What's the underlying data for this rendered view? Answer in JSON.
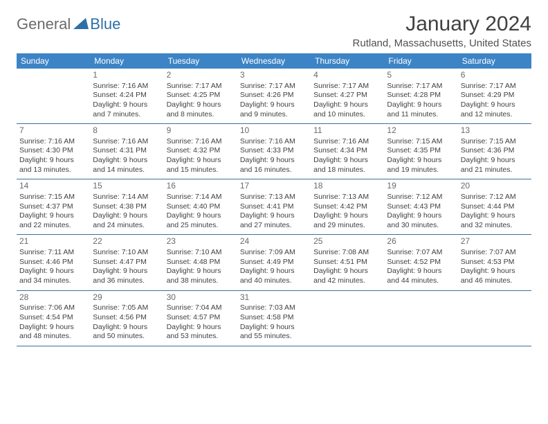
{
  "brand": {
    "part1": "General",
    "part2": "Blue"
  },
  "title": "January 2024",
  "location": "Rutland, Massachusetts, United States",
  "colors": {
    "header_bg": "#3d84c6",
    "header_text": "#ffffff",
    "row_border": "#3d6f9c",
    "title_color": "#404040",
    "logo_gray": "#6b6b6b",
    "logo_blue": "#2f6fa8",
    "cell_text": "#404040",
    "date_color": "#6a6a6a",
    "background": "#ffffff"
  },
  "day_names": [
    "Sunday",
    "Monday",
    "Tuesday",
    "Wednesday",
    "Thursday",
    "Friday",
    "Saturday"
  ],
  "weeks": [
    [
      null,
      {
        "d": "1",
        "sr": "Sunrise: 7:16 AM",
        "ss": "Sunset: 4:24 PM",
        "dl1": "Daylight: 9 hours",
        "dl2": "and 7 minutes."
      },
      {
        "d": "2",
        "sr": "Sunrise: 7:17 AM",
        "ss": "Sunset: 4:25 PM",
        "dl1": "Daylight: 9 hours",
        "dl2": "and 8 minutes."
      },
      {
        "d": "3",
        "sr": "Sunrise: 7:17 AM",
        "ss": "Sunset: 4:26 PM",
        "dl1": "Daylight: 9 hours",
        "dl2": "and 9 minutes."
      },
      {
        "d": "4",
        "sr": "Sunrise: 7:17 AM",
        "ss": "Sunset: 4:27 PM",
        "dl1": "Daylight: 9 hours",
        "dl2": "and 10 minutes."
      },
      {
        "d": "5",
        "sr": "Sunrise: 7:17 AM",
        "ss": "Sunset: 4:28 PM",
        "dl1": "Daylight: 9 hours",
        "dl2": "and 11 minutes."
      },
      {
        "d": "6",
        "sr": "Sunrise: 7:17 AM",
        "ss": "Sunset: 4:29 PM",
        "dl1": "Daylight: 9 hours",
        "dl2": "and 12 minutes."
      }
    ],
    [
      {
        "d": "7",
        "sr": "Sunrise: 7:16 AM",
        "ss": "Sunset: 4:30 PM",
        "dl1": "Daylight: 9 hours",
        "dl2": "and 13 minutes."
      },
      {
        "d": "8",
        "sr": "Sunrise: 7:16 AM",
        "ss": "Sunset: 4:31 PM",
        "dl1": "Daylight: 9 hours",
        "dl2": "and 14 minutes."
      },
      {
        "d": "9",
        "sr": "Sunrise: 7:16 AM",
        "ss": "Sunset: 4:32 PM",
        "dl1": "Daylight: 9 hours",
        "dl2": "and 15 minutes."
      },
      {
        "d": "10",
        "sr": "Sunrise: 7:16 AM",
        "ss": "Sunset: 4:33 PM",
        "dl1": "Daylight: 9 hours",
        "dl2": "and 16 minutes."
      },
      {
        "d": "11",
        "sr": "Sunrise: 7:16 AM",
        "ss": "Sunset: 4:34 PM",
        "dl1": "Daylight: 9 hours",
        "dl2": "and 18 minutes."
      },
      {
        "d": "12",
        "sr": "Sunrise: 7:15 AM",
        "ss": "Sunset: 4:35 PM",
        "dl1": "Daylight: 9 hours",
        "dl2": "and 19 minutes."
      },
      {
        "d": "13",
        "sr": "Sunrise: 7:15 AM",
        "ss": "Sunset: 4:36 PM",
        "dl1": "Daylight: 9 hours",
        "dl2": "and 21 minutes."
      }
    ],
    [
      {
        "d": "14",
        "sr": "Sunrise: 7:15 AM",
        "ss": "Sunset: 4:37 PM",
        "dl1": "Daylight: 9 hours",
        "dl2": "and 22 minutes."
      },
      {
        "d": "15",
        "sr": "Sunrise: 7:14 AM",
        "ss": "Sunset: 4:38 PM",
        "dl1": "Daylight: 9 hours",
        "dl2": "and 24 minutes."
      },
      {
        "d": "16",
        "sr": "Sunrise: 7:14 AM",
        "ss": "Sunset: 4:40 PM",
        "dl1": "Daylight: 9 hours",
        "dl2": "and 25 minutes."
      },
      {
        "d": "17",
        "sr": "Sunrise: 7:13 AM",
        "ss": "Sunset: 4:41 PM",
        "dl1": "Daylight: 9 hours",
        "dl2": "and 27 minutes."
      },
      {
        "d": "18",
        "sr": "Sunrise: 7:13 AM",
        "ss": "Sunset: 4:42 PM",
        "dl1": "Daylight: 9 hours",
        "dl2": "and 29 minutes."
      },
      {
        "d": "19",
        "sr": "Sunrise: 7:12 AM",
        "ss": "Sunset: 4:43 PM",
        "dl1": "Daylight: 9 hours",
        "dl2": "and 30 minutes."
      },
      {
        "d": "20",
        "sr": "Sunrise: 7:12 AM",
        "ss": "Sunset: 4:44 PM",
        "dl1": "Daylight: 9 hours",
        "dl2": "and 32 minutes."
      }
    ],
    [
      {
        "d": "21",
        "sr": "Sunrise: 7:11 AM",
        "ss": "Sunset: 4:46 PM",
        "dl1": "Daylight: 9 hours",
        "dl2": "and 34 minutes."
      },
      {
        "d": "22",
        "sr": "Sunrise: 7:10 AM",
        "ss": "Sunset: 4:47 PM",
        "dl1": "Daylight: 9 hours",
        "dl2": "and 36 minutes."
      },
      {
        "d": "23",
        "sr": "Sunrise: 7:10 AM",
        "ss": "Sunset: 4:48 PM",
        "dl1": "Daylight: 9 hours",
        "dl2": "and 38 minutes."
      },
      {
        "d": "24",
        "sr": "Sunrise: 7:09 AM",
        "ss": "Sunset: 4:49 PM",
        "dl1": "Daylight: 9 hours",
        "dl2": "and 40 minutes."
      },
      {
        "d": "25",
        "sr": "Sunrise: 7:08 AM",
        "ss": "Sunset: 4:51 PM",
        "dl1": "Daylight: 9 hours",
        "dl2": "and 42 minutes."
      },
      {
        "d": "26",
        "sr": "Sunrise: 7:07 AM",
        "ss": "Sunset: 4:52 PM",
        "dl1": "Daylight: 9 hours",
        "dl2": "and 44 minutes."
      },
      {
        "d": "27",
        "sr": "Sunrise: 7:07 AM",
        "ss": "Sunset: 4:53 PM",
        "dl1": "Daylight: 9 hours",
        "dl2": "and 46 minutes."
      }
    ],
    [
      {
        "d": "28",
        "sr": "Sunrise: 7:06 AM",
        "ss": "Sunset: 4:54 PM",
        "dl1": "Daylight: 9 hours",
        "dl2": "and 48 minutes."
      },
      {
        "d": "29",
        "sr": "Sunrise: 7:05 AM",
        "ss": "Sunset: 4:56 PM",
        "dl1": "Daylight: 9 hours",
        "dl2": "and 50 minutes."
      },
      {
        "d": "30",
        "sr": "Sunrise: 7:04 AM",
        "ss": "Sunset: 4:57 PM",
        "dl1": "Daylight: 9 hours",
        "dl2": "and 53 minutes."
      },
      {
        "d": "31",
        "sr": "Sunrise: 7:03 AM",
        "ss": "Sunset: 4:58 PM",
        "dl1": "Daylight: 9 hours",
        "dl2": "and 55 minutes."
      },
      null,
      null,
      null
    ]
  ]
}
